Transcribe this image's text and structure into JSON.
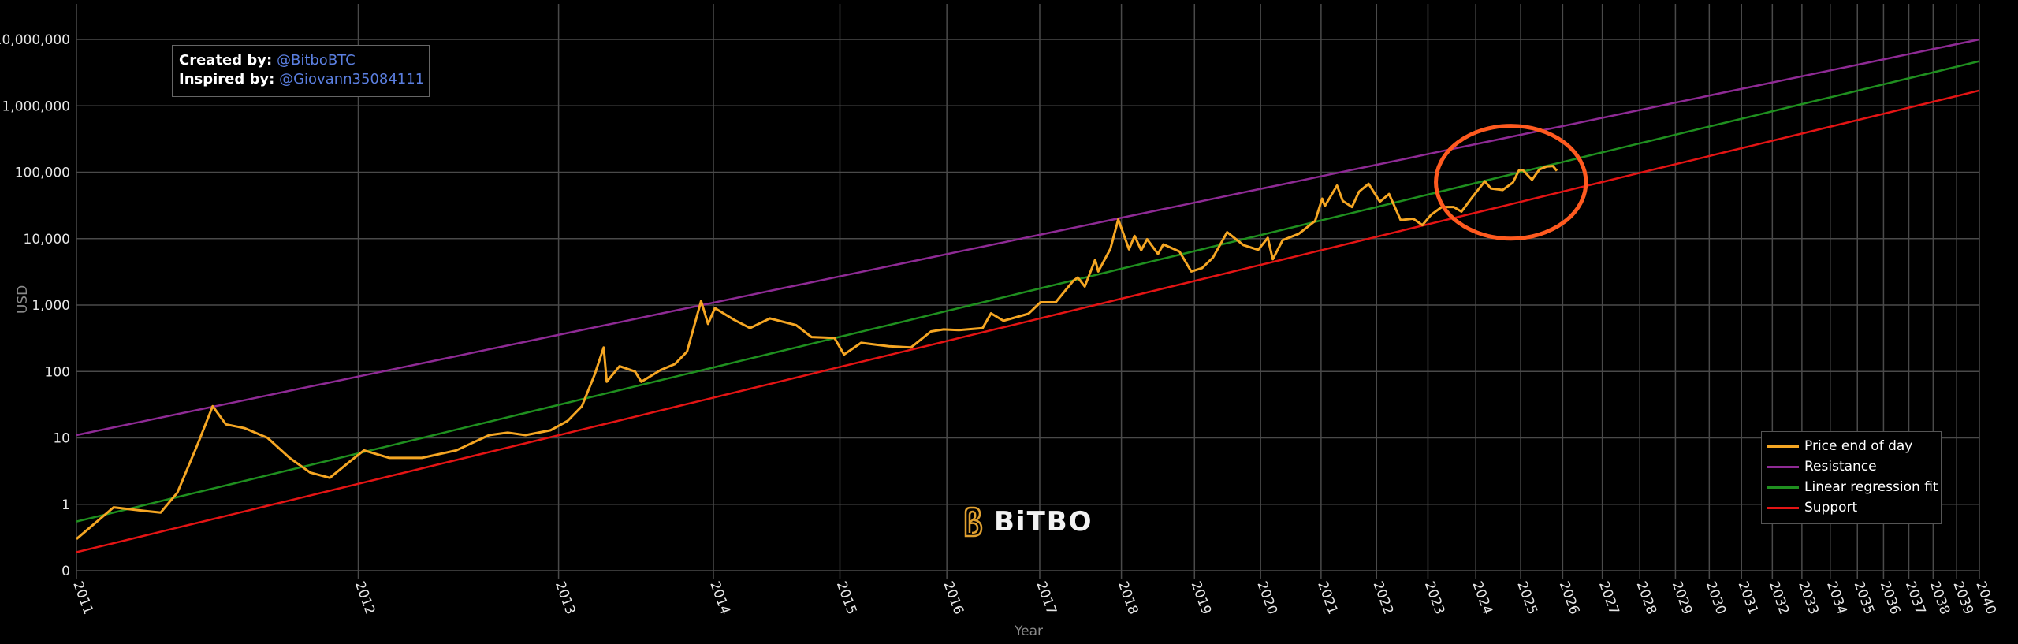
{
  "chart_data": {
    "type": "line",
    "title": "",
    "xlabel": "Year",
    "ylabel": "USD",
    "x_scale": "log (days since genesis block 2009-01-03)",
    "y_scale": "log",
    "ylim": [
      0.1,
      10000000
    ],
    "xlim": [
      "2011-01-01",
      "2040-01-01"
    ],
    "x_ticks": [
      "2011",
      "2012",
      "2013",
      "2014",
      "2015",
      "2016",
      "2017",
      "2018",
      "2019",
      "2020",
      "2021",
      "2022",
      "2023",
      "2024",
      "2025",
      "2026",
      "2027",
      "2028",
      "2029",
      "2030",
      "2031",
      "2032",
      "2033",
      "2034",
      "2035",
      "2036",
      "2037",
      "2038",
      "2039",
      "2040"
    ],
    "y_ticks": [
      {
        "value": 0.1,
        "label": "0"
      },
      {
        "value": 1,
        "label": "1"
      },
      {
        "value": 10,
        "label": "10"
      },
      {
        "value": 100,
        "label": "100"
      },
      {
        "value": 1000,
        "label": "1,000"
      },
      {
        "value": 10000,
        "label": "10,000"
      },
      {
        "value": 100000,
        "label": "100,000"
      },
      {
        "value": 1000000,
        "label": "1,000,000"
      },
      {
        "value": 10000000,
        "label": "10,000,000"
      }
    ],
    "grid": true,
    "legend_position": "bottom-right",
    "series": [
      {
        "name": "Price end of day",
        "color": "#f5a623",
        "x": [
          "2011-01-01",
          "2011-02-10",
          "2011-03-15",
          "2011-04-05",
          "2011-04-25",
          "2011-05-20",
          "2011-06-08",
          "2011-06-25",
          "2011-07-20",
          "2011-08-20",
          "2011-09-20",
          "2011-10-20",
          "2011-11-18",
          "2011-12-20",
          "2012-01-10",
          "2012-02-20",
          "2012-04-15",
          "2012-06-15",
          "2012-08-15",
          "2012-09-20",
          "2012-10-25",
          "2012-12-15",
          "2013-01-20",
          "2013-02-20",
          "2013-03-20",
          "2013-04-09",
          "2013-04-16",
          "2013-05-15",
          "2013-06-20",
          "2013-07-05",
          "2013-08-20",
          "2013-09-25",
          "2013-10-25",
          "2013-11-30",
          "2013-12-18",
          "2014-01-05",
          "2014-02-25",
          "2014-04-10",
          "2014-06-05",
          "2014-08-20",
          "2014-10-05",
          "2014-12-15",
          "2015-01-14",
          "2015-03-10",
          "2015-06-10",
          "2015-08-25",
          "2015-11-04",
          "2015-12-20",
          "2016-02-15",
          "2016-05-15",
          "2016-06-17",
          "2016-08-05",
          "2016-11-15",
          "2017-01-04",
          "2017-03-10",
          "2017-05-25",
          "2017-06-15",
          "2017-07-16",
          "2017-09-01",
          "2017-09-15",
          "2017-11-10",
          "2017-12-17",
          "2018-02-06",
          "2018-03-05",
          "2018-04-06",
          "2018-05-05",
          "2018-06-28",
          "2018-07-25",
          "2018-10-15",
          "2018-12-15",
          "2019-02-10",
          "2019-04-10",
          "2019-06-26",
          "2019-09-25",
          "2019-12-18",
          "2020-02-12",
          "2020-03-12",
          "2020-05-10",
          "2020-08-15",
          "2020-11-25",
          "2021-01-08",
          "2021-01-25",
          "2021-04-13",
          "2021-05-20",
          "2021-07-20",
          "2021-09-05",
          "2021-11-08",
          "2022-01-24",
          "2022-03-28",
          "2022-06-18",
          "2022-09-15",
          "2022-11-21",
          "2023-01-25",
          "2023-04-14",
          "2023-07-13",
          "2023-09-11",
          "2023-12-08",
          "2024-03-13",
          "2024-05-01",
          "2024-08-05",
          "2024-10-28",
          "2024-12-17",
          "2025-01-20",
          "2025-04-08",
          "2025-06-10",
          "2025-08-14",
          "2025-10-06",
          "2025-11-10"
        ],
        "y": [
          0.3,
          0.9,
          0.8,
          0.75,
          1.5,
          8,
          30,
          16,
          14,
          10,
          5,
          3,
          2.5,
          4.5,
          6.5,
          5,
          5,
          6.5,
          11,
          12,
          11,
          13,
          18,
          30,
          90,
          230,
          70,
          120,
          100,
          70,
          105,
          130,
          200,
          1150,
          520,
          900,
          600,
          450,
          630,
          500,
          330,
          320,
          180,
          270,
          240,
          230,
          400,
          430,
          420,
          450,
          750,
          580,
          740,
          1100,
          1100,
          2300,
          2600,
          1900,
          4800,
          3200,
          7000,
          19500,
          6900,
          11000,
          6700,
          9800,
          5900,
          8200,
          6400,
          3200,
          3600,
          5200,
          12500,
          8000,
          6800,
          10300,
          4900,
          9500,
          11800,
          18500,
          40000,
          31000,
          63000,
          37000,
          30000,
          51000,
          67000,
          36000,
          47000,
          19000,
          20000,
          16000,
          23000,
          30000,
          30000,
          25500,
          43000,
          73000,
          57000,
          54000,
          70000,
          106000,
          108000,
          77000,
          110000,
          122000,
          124000,
          105000
        ]
      },
      {
        "name": "Resistance",
        "color": "#8e2a94",
        "x": [
          "2011-01-01",
          "2040-01-01"
        ],
        "y": [
          11,
          10000000
        ]
      },
      {
        "name": "Linear regression fit",
        "color": "#1f8f1f",
        "x": [
          "2011-01-01",
          "2040-01-01"
        ],
        "y": [
          0.55,
          4700000
        ]
      },
      {
        "name": "Support",
        "color": "#e31414",
        "x": [
          "2011-01-01",
          "2040-01-01"
        ],
        "y": [
          0.19,
          1700000
        ]
      }
    ],
    "annotations": [
      {
        "type": "ellipse",
        "color": "#ff5a1f",
        "x_range": [
          "2023-03-01",
          "2026-08-01"
        ],
        "y_range": [
          10000,
          500000
        ]
      }
    ]
  },
  "credits": {
    "created_label": "Created by:",
    "created_handle": "@BitboBTC",
    "inspired_label": "Inspired by:",
    "inspired_handle": "@Giovann35084111"
  },
  "logo": {
    "text": "BiTBO"
  },
  "colors": {
    "background": "#000000",
    "grid": "#444444",
    "accent": "#f5a623"
  }
}
